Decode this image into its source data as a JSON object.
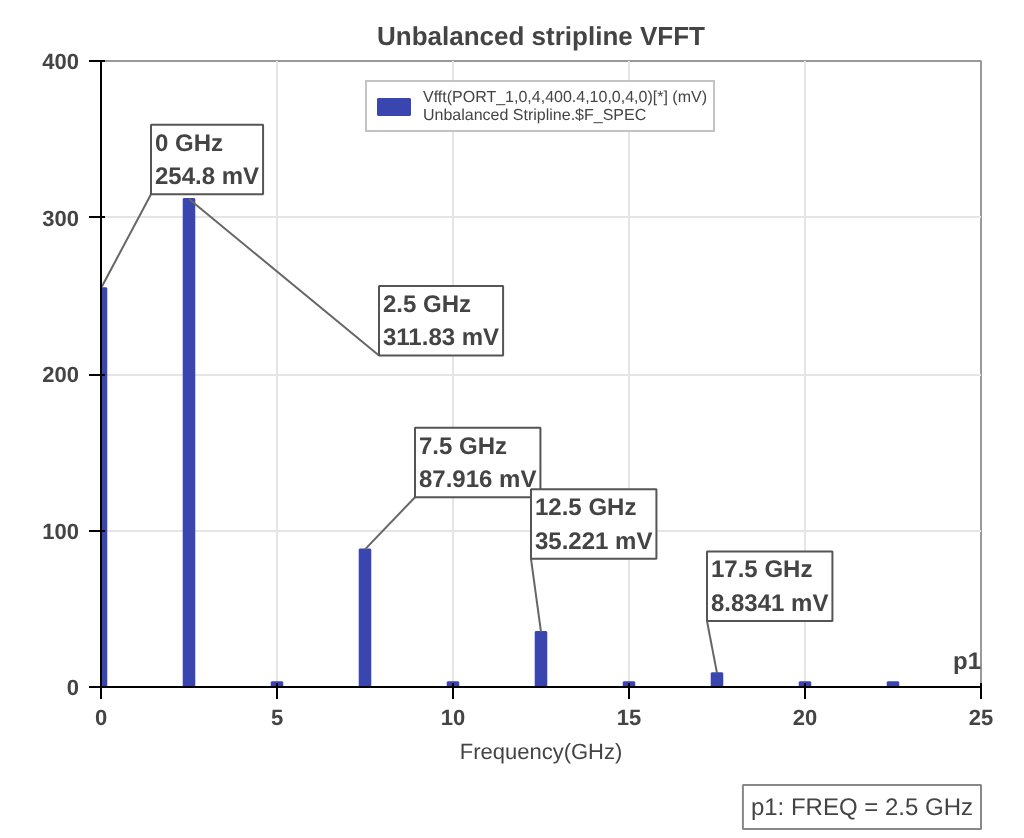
{
  "chart_data": {
    "type": "bar",
    "title": "Unbalanced stripline VFFT",
    "xlabel": "Frequency(GHz)",
    "x": [
      0,
      2.5,
      5,
      7.5,
      10,
      12.5,
      15,
      17.5,
      20,
      22.5
    ],
    "series": [
      {
        "name": "Vfft(PORT_1,0,4,400.4,10,0,4,0)[*] (mV)\nUnbalanced Stripline.$F_SPEC",
        "color": "#3a46b0",
        "values": [
          254.8,
          311.83,
          3,
          87.916,
          3,
          35.221,
          3,
          8.8341,
          3,
          3
        ]
      }
    ],
    "xlim": [
      0,
      25
    ],
    "ylim": [
      0,
      400
    ],
    "xticks": [
      0,
      5,
      10,
      15,
      20,
      25
    ],
    "yticks": [
      0,
      100,
      200,
      300,
      400
    ],
    "grid": true,
    "legend": "top",
    "annotations": [
      {
        "text": "0 GHz\n254.8 mV",
        "x": 0,
        "y": 254.8
      },
      {
        "text": "2.5 GHz\n311.83 mV",
        "x": 2.5,
        "y": 311.83
      },
      {
        "text": "7.5 GHz\n87.916 mV",
        "x": 7.5,
        "y": 87.916
      },
      {
        "text": "12.5 GHz\n35.221 mV",
        "x": 12.5,
        "y": 35.221
      },
      {
        "text": "17.5 GHz\n8.8341 mV",
        "x": 17.5,
        "y": 8.8341
      },
      "p1",
      "p1: FREQ = 2.5 GHz"
    ]
  }
}
